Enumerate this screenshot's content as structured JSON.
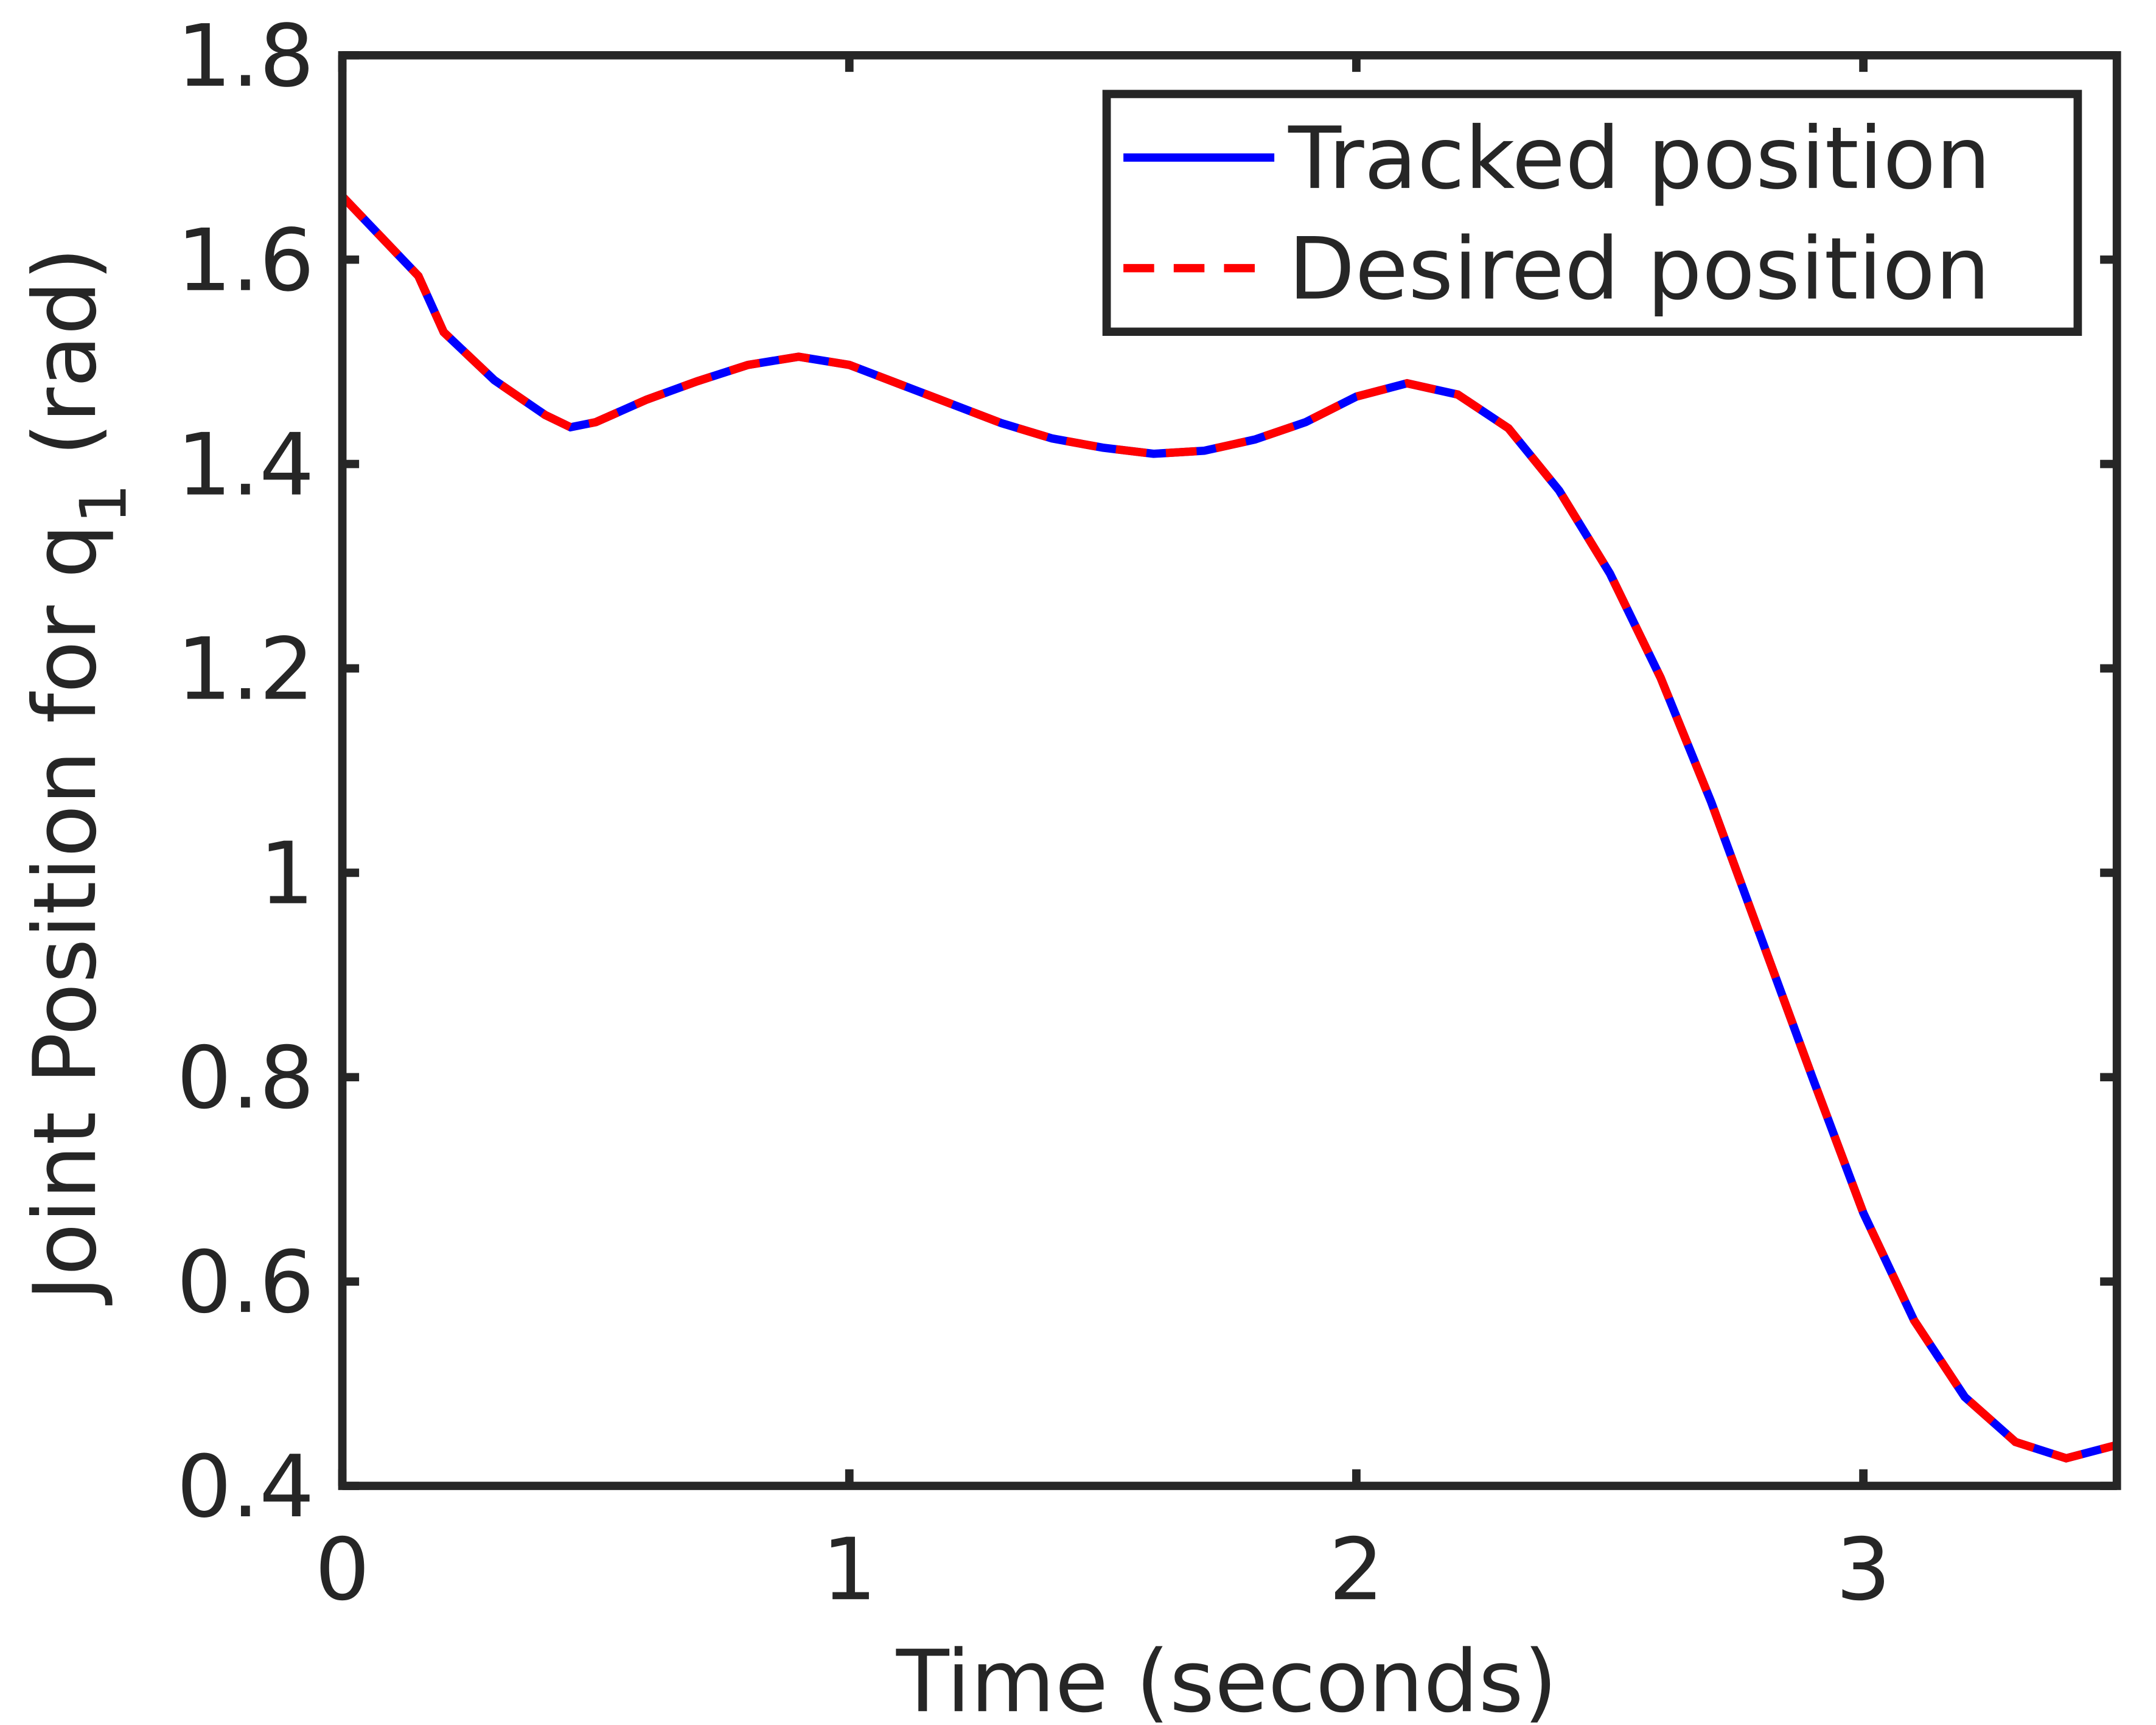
{
  "chart_data": {
    "type": "line",
    "xlabel": "Time (seconds)",
    "ylabel": {
      "text": "Joint Position for q",
      "subscript": "1",
      "suffix": " (rad)"
    },
    "x": [
      0,
      0.15,
      0.2,
      0.3,
      0.4,
      0.45,
      0.5,
      0.6,
      0.7,
      0.8,
      0.9,
      1.0,
      1.1,
      1.2,
      1.3,
      1.4,
      1.5,
      1.6,
      1.7,
      1.8,
      1.9,
      2.0,
      2.1,
      2.2,
      2.3,
      2.4,
      2.5,
      2.6,
      2.7,
      2.8,
      2.9,
      3.0,
      3.1,
      3.2,
      3.3,
      3.4,
      3.5
    ],
    "series": [
      {
        "name": "Tracked position",
        "color": "#0000ff",
        "line_style": "solid",
        "values": [
          1.662,
          1.584,
          1.529,
          1.482,
          1.448,
          1.436,
          1.441,
          1.463,
          1.481,
          1.497,
          1.505,
          1.497,
          1.478,
          1.459,
          1.44,
          1.425,
          1.416,
          1.41,
          1.413,
          1.424,
          1.441,
          1.466,
          1.479,
          1.468,
          1.435,
          1.374,
          1.293,
          1.191,
          1.069,
          0.934,
          0.799,
          0.667,
          0.562,
          0.487,
          0.443,
          0.427,
          0.44
        ]
      },
      {
        "name": "Desired position",
        "color": "#ff0000",
        "line_style": "dashed",
        "values": [
          1.662,
          1.584,
          1.529,
          1.482,
          1.448,
          1.436,
          1.441,
          1.463,
          1.481,
          1.497,
          1.505,
          1.497,
          1.478,
          1.459,
          1.44,
          1.425,
          1.416,
          1.41,
          1.413,
          1.424,
          1.441,
          1.466,
          1.479,
          1.468,
          1.435,
          1.374,
          1.293,
          1.191,
          1.069,
          0.934,
          0.799,
          0.667,
          0.562,
          0.487,
          0.443,
          0.427,
          0.44
        ]
      }
    ],
    "xlim": [
      0,
      3.5
    ],
    "xticks": [
      0,
      1,
      2,
      3
    ],
    "ylim": [
      0.4,
      1.8
    ],
    "yticks": [
      0.4,
      0.6,
      0.8,
      1,
      1.2,
      1.4,
      1.6,
      1.8
    ],
    "grid": false,
    "legend": "top-right"
  }
}
